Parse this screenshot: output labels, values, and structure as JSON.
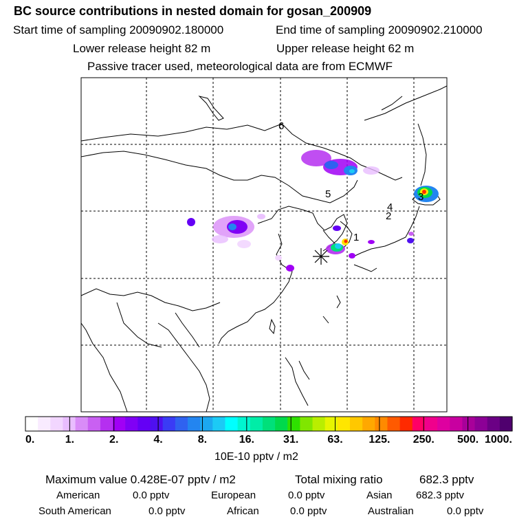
{
  "header": {
    "title": "BC  source contributions in nested domain for gosan_200909",
    "start_label": "Start time of sampling 20090902.180000",
    "end_label": "End time of sampling 20090902.210000",
    "lower_label": "Lower release height   82 m",
    "upper_label": "Upper release height   62 m",
    "note": "Passive tracer used, meteorological data are from ECMWF"
  },
  "map": {
    "markers": [
      "1",
      "2",
      "3",
      "4",
      "5",
      "6"
    ],
    "gridline_color": "#000000",
    "coastline_color": "#000000",
    "receptor_icon": "asterisk-icon"
  },
  "colorbar": {
    "tick_labels": [
      "0.",
      "1.",
      "2.",
      "4.",
      "8.",
      "16.",
      "31.",
      "63.",
      "125.",
      "250.",
      "500.",
      "1000."
    ],
    "colors": [
      "#ffffff",
      "#f9ebff",
      "#f2d6ff",
      "#e9bdff",
      "#d98cf7",
      "#c960f2",
      "#b52ff0",
      "#a000f5",
      "#8000f5",
      "#6400f5",
      "#4f10f0",
      "#3a3cf5",
      "#2f62f0",
      "#2385f0",
      "#1ca8f0",
      "#1ccaf5",
      "#00ffff",
      "#00f5d0",
      "#00eda7",
      "#00e07a",
      "#00d94c",
      "#2ee000",
      "#80e600",
      "#b9ee00",
      "#e6f500",
      "#ffe600",
      "#ffc800",
      "#ffa800",
      "#ff8a00",
      "#ff5a00",
      "#ff2a00",
      "#ff0066",
      "#f0008c",
      "#de00a0",
      "#c800a0",
      "#a8009a",
      "#8c0096",
      "#6b0085",
      "#4f006e"
    ],
    "unit_label": "10E-10 pptv / m2"
  },
  "footer": {
    "max_label": "Maximum value  0.428E-07 pptv / m2",
    "total_label": "Total mixing ratio",
    "total_value": "682.3 pptv",
    "regions": [
      {
        "name": "American",
        "value": "0.0 pptv"
      },
      {
        "name": "European",
        "value": "0.0 pptv"
      },
      {
        "name": "Asian",
        "value": "682.3 pptv"
      },
      {
        "name": "South American",
        "value": "0.0 pptv"
      },
      {
        "name": "African",
        "value": "0.0 pptv"
      },
      {
        "name": "Australian",
        "value": "0.0 pptv"
      }
    ]
  }
}
